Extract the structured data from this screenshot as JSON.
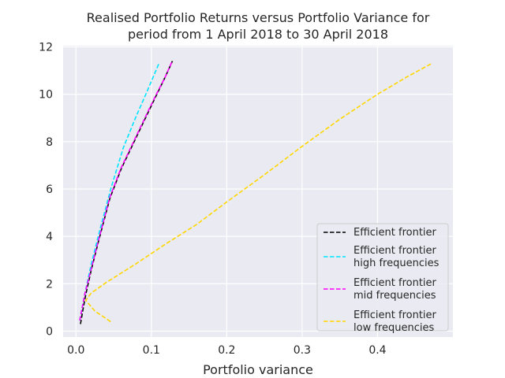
{
  "chart_data": {
    "type": "line",
    "title_lines": [
      "Realised Portfolio Returns versus Portfolio Variance for",
      "period from 1 April 2018 to 30 April 2018"
    ],
    "xlabel": "Portfolio variance",
    "ylabel": "",
    "xlim": [
      -0.017,
      0.5
    ],
    "ylim": [
      -0.25,
      12.05
    ],
    "xticks": [
      0.0,
      0.1,
      0.2,
      0.3,
      0.4
    ],
    "xtick_labels": [
      "0.0",
      "0.1",
      "0.2",
      "0.3",
      "0.4"
    ],
    "yticks": [
      0,
      2,
      4,
      6,
      8,
      10,
      12
    ],
    "ytick_labels": [
      "0",
      "2",
      "4",
      "6",
      "8",
      "10",
      "12"
    ],
    "grid": true,
    "background": "#eaeaf2",
    "legend_position": "lower-right",
    "series": [
      {
        "name": "Efficient frontier",
        "color": "#000000",
        "dash": "dashed",
        "x": [
          0.006,
          0.009,
          0.013,
          0.02,
          0.03,
          0.045,
          0.06,
          0.075,
          0.09,
          0.105,
          0.118,
          0.128
        ],
        "y": [
          0.3,
          0.85,
          1.55,
          2.55,
          3.8,
          5.6,
          6.85,
          7.85,
          8.85,
          9.85,
          10.7,
          11.4
        ]
      },
      {
        "name": "Efficient frontier\nhigh frequencies",
        "color": "#00e5ff",
        "dash": "dashed",
        "x": [
          0.005,
          0.008,
          0.012,
          0.02,
          0.032,
          0.047,
          0.063,
          0.079,
          0.094,
          0.11
        ],
        "y": [
          0.45,
          0.95,
          1.6,
          2.8,
          4.3,
          6.1,
          7.75,
          9.0,
          10.1,
          11.3
        ]
      },
      {
        "name": "Efficient frontier\nmid frequencies",
        "color": "#ff00ff",
        "dash": "dashed",
        "x": [
          0.005,
          0.008,
          0.012,
          0.02,
          0.03,
          0.045,
          0.06,
          0.075,
          0.09,
          0.105,
          0.118,
          0.127
        ],
        "y": [
          0.45,
          0.95,
          1.6,
          2.6,
          3.85,
          5.65,
          6.9,
          7.9,
          8.9,
          9.9,
          10.7,
          11.35
        ]
      },
      {
        "name": "Efficient frontier\nlow frequencies",
        "color": "#ffd700",
        "dash": "dashed",
        "x": [
          0.046,
          0.025,
          0.013,
          0.02,
          0.04,
          0.08,
          0.12,
          0.16,
          0.2,
          0.25,
          0.3,
          0.35,
          0.4,
          0.44,
          0.472
        ],
        "y": [
          0.4,
          0.85,
          1.3,
          1.6,
          2.05,
          2.85,
          3.7,
          4.5,
          5.45,
          6.6,
          7.8,
          8.95,
          10.0,
          10.75,
          11.3
        ]
      }
    ]
  }
}
